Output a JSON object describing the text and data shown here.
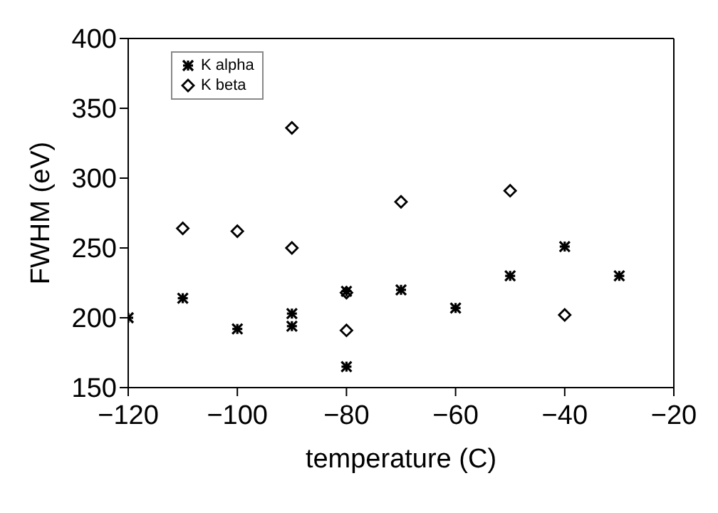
{
  "chart_data": {
    "type": "scatter",
    "xlabel": "temperature (C)",
    "ylabel": "FWHM (eV)",
    "xlim": [
      -120,
      -20
    ],
    "xticks": [
      -120,
      -100,
      -80,
      -60,
      -40,
      -20
    ],
    "ylim": [
      150,
      400
    ],
    "yticks": [
      150,
      200,
      250,
      300,
      350,
      400
    ],
    "grid": false,
    "legend": "top left",
    "series": [
      {
        "name": "K alpha",
        "color": "#000000",
        "marker": "cross",
        "x": [
          -120,
          -110,
          -100,
          -90,
          -90,
          -80,
          -80,
          -70,
          -60,
          -50,
          -40,
          -30
        ],
        "values": [
          200,
          214,
          192,
          203,
          194,
          219,
          165,
          220,
          207,
          230,
          251,
          230
        ]
      },
      {
        "name": "K beta",
        "color": "#000000",
        "marker": "diamond",
        "x": [
          -110,
          -100,
          -90,
          -90,
          -80,
          -80,
          -70,
          -50,
          -40
        ],
        "values": [
          264,
          262,
          336,
          250,
          218,
          191,
          283,
          291,
          202
        ]
      }
    ]
  }
}
